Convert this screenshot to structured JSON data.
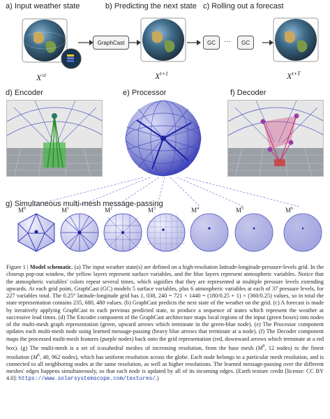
{
  "panels": {
    "a": "a)  Input weather state",
    "b": "b)  Predicting the next state",
    "c": "c)  Rolling out a forecast",
    "d": "d)  Encoder",
    "e": "e)  Processor",
    "f": "f)  Decoder",
    "g": "g)  Simultaneous multi-mesh message-passing"
  },
  "boxes": {
    "graphcast": "GraphCast",
    "gc1": "GC",
    "gc2": "GC",
    "dots": "···"
  },
  "symbols": {
    "x_base": "X",
    "x_a_sup": "≤t",
    "x_b_sup": "t+1",
    "x_c_sup": "t+T"
  },
  "meshes": [
    {
      "base": "M",
      "sup": "0"
    },
    {
      "base": "M",
      "sup": "1"
    },
    {
      "base": "M",
      "sup": "2"
    },
    {
      "base": "M",
      "sup": "3"
    },
    {
      "base": "M",
      "sup": "4"
    },
    {
      "base": "M",
      "sup": "5"
    },
    {
      "base": "M",
      "sup": "6"
    }
  ],
  "caption": {
    "p01": "Figure 1 | ",
    "p02": "Model schematic.",
    "p03": " (a) The input weather state(s) are defined on a high-resolution latitude-longitude-pressure-levels grid. In the closeup pop-out window, the yellow layers represent surface variables, and the blue layers represent atmospheric variables. Notice that the atmospheric variables' colors repeat several times, which signifies that they are represented at multiple pressure levels extending upwards. At each grid point, GraphCast (GC) models 5 surface variables, plus 6 atmospheric variables at each of 37 pressure levels, for 227 variables total. The 0.25° latitude-longitude grid has 1, 038, 240 = 721 × 1440 = (180/0.25 + 1) × (360/0.25) values, so in total the state representation contains 235, 680, 480 values. (b) GraphCast predicts the next state of the weather on the grid. (c) A forecast is made by iteratively applying GraphCast to each previous predicted state, to produce a sequence of states which represent the weather at successive lead times. (d) The Encoder component of the GraphCast architecture maps local regions of the input (green boxes) into nodes of the multi-mesh graph representation (green, upward arrows which terminate in the green-blue node). (e) The Processor component updates each multi-mesh node using learned message-passing (heavy blue arrows that terminate at a node). (f) The Decoder component maps the processed multi-mesh features (purple nodes) back onto the grid representation (red, downward arrows which terminate at a red box). (g) The multi-mesh is a set of icosahedral meshes of increasing resolution, from the base mesh (",
    "p04": "M",
    "p05": "0",
    "p06": ", 12 nodes) to the finest resolution (",
    "p07": "M",
    "p08": "6",
    "p09": ", 40, 962 nodes), which has uniform resolution across the globe. Each node belongs to a particular mesh resolution, and is connected to all neighboring nodes at the same resolution, as well as higher resolutions. The learned message-passing over the different meshes' edges happens simultaneously, so that each node is updated by all of its incoming edges. (Earth texture credit [license: CC BY 4.0]: ",
    "p10": "https://www.solarsystemscope.com/textures/",
    "p11": ".)"
  },
  "colors": {
    "mesh_blue": "#3a3fb8",
    "encoder_green": "#3db83d",
    "decoder_red": "#cc3a7a",
    "globe_frame": "#8a8a8a"
  }
}
